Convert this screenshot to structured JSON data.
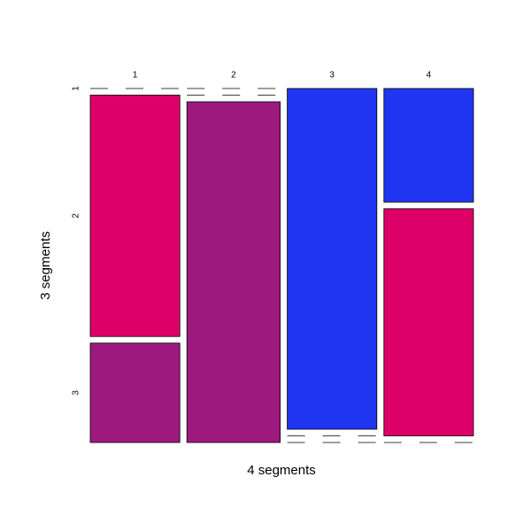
{
  "chart_data": {
    "type": "mosaic",
    "x_label": "4 segments",
    "y_label": "3 segments",
    "categories": [
      "1",
      "2",
      "3",
      "4"
    ],
    "rows": [
      "1",
      "2",
      "3"
    ],
    "series": [
      {
        "name": "1",
        "color": "#1f35ef",
        "values": [
          0,
          0,
          24,
          8
        ]
      },
      {
        "name": "2",
        "color": "#dc0068",
        "values": [
          17,
          0,
          0,
          16
        ]
      },
      {
        "name": "3",
        "color": "#9c1a7e",
        "values": [
          7,
          25,
          0,
          0
        ]
      }
    ]
  }
}
